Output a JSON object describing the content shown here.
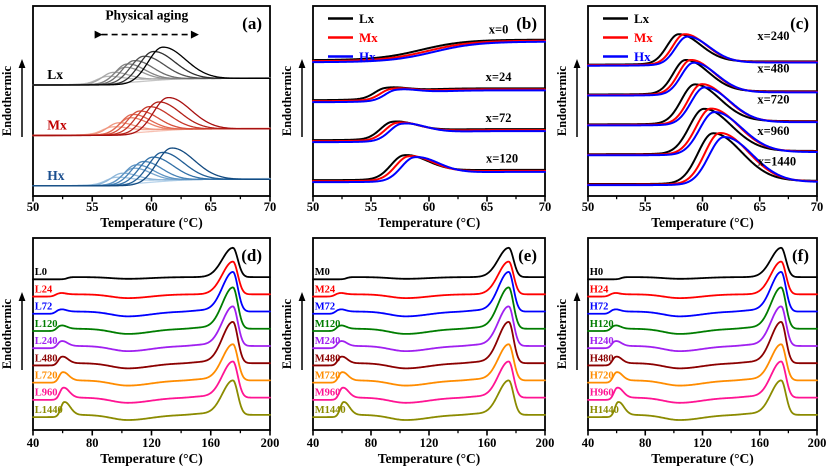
{
  "figure": {
    "background": "#ffffff"
  },
  "chart_data": {
    "type": "line",
    "description_fields": {
      "x_axis_label": "Temperature (°C)",
      "y_axis_label": "Endothermic",
      "aging_times_h": [
        0,
        24,
        72,
        120,
        240,
        480,
        720,
        960,
        1440
      ]
    },
    "bottom_series": {
      "colors": [
        "#000000",
        "#ff0000",
        "#0000ff",
        "#007d00",
        "#a020f0",
        "#8b0000",
        "#ff8c00",
        "#ff1493",
        "#8b8b00"
      ],
      "tg_mu": [
        63.0,
        57.5,
        58.2,
        58.8,
        59.3,
        59.8,
        60.3,
        60.8,
        61.5
      ],
      "tg_amp": [
        0,
        0.12,
        0.18,
        0.25,
        0.35,
        0.45,
        0.55,
        0.65,
        0.82
      ],
      "dip_amp": [
        0.1,
        0.22,
        0.28,
        0.3,
        0.3,
        0.3,
        0.3,
        0.3,
        0.3
      ],
      "melt_amp": [
        1.7,
        1.9,
        2.3,
        2.4,
        2.3,
        2.4,
        2.1,
        2.1,
        2.0
      ],
      "melt_mu": 175
    },
    "panels": [
      {
        "id": "a",
        "letter": "(a)",
        "xlabel": "Temperature (°C)",
        "ylabel": "Endothermic",
        "xlim": [
          50,
          70
        ],
        "xticks": [
          50,
          55,
          60,
          65,
          70
        ],
        "minor": 2.5,
        "ulim": [
          -0.3,
          5.35
        ],
        "lw": 1.3,
        "label_size": 13.5,
        "annotation": {
          "text": "Physical aging",
          "text_x": 59.6,
          "text_y": 4.95,
          "arrow_y": 4.5,
          "arrow_x1": 55.2,
          "arrow_x2": 64.0
        },
        "labels": [
          {
            "text": "Lx",
            "x": 51.2,
            "y": 3.18,
            "color": "#000000",
            "anchor": "start"
          },
          {
            "text": "Mx",
            "x": 51.2,
            "y": 1.68,
            "color": "#c00000",
            "anchor": "start"
          },
          {
            "text": "Hx",
            "x": 51.2,
            "y": 0.18,
            "color": "#1b4f8f",
            "anchor": "start"
          }
        ],
        "families": [
          {
            "name": "Lx",
            "base": 3.0,
            "step0_mu": 59.3,
            "shades": [
              "#c6c6c6",
              "#b7b7b7",
              "#a7a7a7",
              "#959595",
              "#838383",
              "#6c6c6c",
              "#505050",
              "#2f2f2f",
              "#000000"
            ],
            "peaks": [
              null,
              56.2,
              56.7,
              57.7,
              57.9,
              58.5,
              59.3,
              60.1,
              60.9
            ],
            "amps": [
              0,
              0.18,
              0.3,
              0.45,
              0.55,
              0.65,
              0.78,
              0.92,
              1.05
            ],
            "sigmas": [
              0,
              0.8,
              0.85,
              0.9,
              0.95,
              1.0,
              1.1,
              1.15,
              1.2
            ]
          },
          {
            "name": "Mx",
            "base": 1.5,
            "step0_mu": 59.75,
            "shades": [
              "#f7c0b2",
              "#f3ab97",
              "#ef957e",
              "#e97e66",
              "#e16750",
              "#d54e3b",
              "#c63628",
              "#b32018",
              "#a81010"
            ],
            "peaks": [
              null,
              56.65,
              57.15,
              58.15,
              58.35,
              58.95,
              59.75,
              60.55,
              61.35
            ],
            "amps": [
              0,
              0.18,
              0.3,
              0.45,
              0.55,
              0.65,
              0.78,
              0.92,
              1.05
            ],
            "sigmas": [
              0,
              0.8,
              0.85,
              0.9,
              0.95,
              1.0,
              1.1,
              1.15,
              1.2
            ]
          },
          {
            "name": "Hx",
            "base": 0.0,
            "step0_mu": 60.05,
            "shades": [
              "#b9d4eb",
              "#a3c5e2",
              "#8cb5d8",
              "#75a5ce",
              "#5e94c3",
              "#4782b6",
              "#3270a7",
              "#205d95",
              "#124a80"
            ],
            "peaks": [
              null,
              56.95,
              57.45,
              58.45,
              58.65,
              59.25,
              60.05,
              60.85,
              61.65
            ],
            "amps": [
              0,
              0.18,
              0.3,
              0.45,
              0.55,
              0.65,
              0.78,
              0.92,
              1.05
            ],
            "sigmas": [
              0,
              0.8,
              0.85,
              0.9,
              0.95,
              1.0,
              1.1,
              1.15,
              1.2
            ]
          }
        ]
      },
      {
        "id": "b",
        "letter": "(b)",
        "xlabel": "Temperature (°C)",
        "ylabel": "Endothermic",
        "xlim": [
          50,
          70
        ],
        "xticks": [
          50,
          55,
          60,
          65,
          70
        ],
        "minor": 2.5,
        "ulim": [
          -0.35,
          4.45
        ],
        "lw": 2,
        "label_size": 12.5,
        "legend": [
          {
            "label": "Lx",
            "color": "#000000"
          },
          {
            "label": "Mx",
            "color": "#ff0000"
          },
          {
            "label": "Hx",
            "color": "#0000ff"
          }
        ],
        "labels": [
          {
            "text": "x=0",
            "x": 66.0,
            "y": 3.75,
            "color": "#000000",
            "anchor": "middle"
          },
          {
            "text": "x=24",
            "x": 66.0,
            "y": 2.56,
            "color": "#000000",
            "anchor": "middle"
          },
          {
            "text": "x=72",
            "x": 66.0,
            "y": 1.52,
            "color": "#000000",
            "anchor": "middle"
          },
          {
            "text": "x=120",
            "x": 66.3,
            "y": 0.5,
            "color": "#000000",
            "anchor": "middle"
          }
        ],
        "curves": [
          {
            "c": "#000000",
            "b": 3.08,
            "f": [
              [
                "s",
                59.3,
                0.52,
                1.9
              ]
            ]
          },
          {
            "c": "#ff0000",
            "b": 3.055,
            "f": [
              [
                "s",
                59.9,
                0.52,
                1.9
              ]
            ]
          },
          {
            "c": "#0000ff",
            "b": 3.03,
            "f": [
              [
                "s",
                60.4,
                0.52,
                1.9
              ]
            ]
          },
          {
            "c": "#000000",
            "b": 2.07,
            "f": [
              [
                "s",
                57.4,
                0.3,
                1.4
              ],
              [
                "p",
                56.2,
                0.22,
                0.9,
                1.9
              ]
            ]
          },
          {
            "c": "#ff0000",
            "b": 2.045,
            "f": [
              [
                "s",
                57.9,
                0.3,
                1.4
              ],
              [
                "p",
                56.7,
                0.22,
                0.9,
                1.9
              ]
            ]
          },
          {
            "c": "#0000ff",
            "b": 2.02,
            "f": [
              [
                "s",
                58.3,
                0.3,
                1.4
              ],
              [
                "p",
                57.1,
                0.22,
                0.9,
                1.9
              ]
            ]
          },
          {
            "c": "#000000",
            "b": 1.06,
            "f": [
              [
                "s",
                58.0,
                0.28,
                1.4
              ],
              [
                "p",
                56.8,
                0.38,
                1.0,
                1.9
              ]
            ]
          },
          {
            "c": "#ff0000",
            "b": 1.035,
            "f": [
              [
                "s",
                58.4,
                0.28,
                1.4
              ],
              [
                "p",
                57.2,
                0.38,
                1.0,
                1.9
              ]
            ]
          },
          {
            "c": "#0000ff",
            "b": 1.01,
            "f": [
              [
                "s",
                58.8,
                0.28,
                1.4
              ],
              [
                "p",
                57.6,
                0.38,
                1.0,
                1.9
              ]
            ]
          },
          {
            "c": "#000000",
            "b": 0.05,
            "f": [
              [
                "s",
                59.0,
                0.26,
                1.4
              ],
              [
                "p",
                57.8,
                0.55,
                1.1,
                1.8
              ]
            ]
          },
          {
            "c": "#ff0000",
            "b": 0.025,
            "f": [
              [
                "s",
                59.4,
                0.26,
                1.4
              ],
              [
                "p",
                58.2,
                0.55,
                1.1,
                1.8
              ]
            ]
          },
          {
            "c": "#0000ff",
            "b": 0.0,
            "f": [
              [
                "s",
                59.9,
                0.26,
                1.4
              ],
              [
                "p",
                58.7,
                0.55,
                1.1,
                1.8
              ]
            ]
          }
        ]
      },
      {
        "id": "c",
        "letter": "(c)",
        "xlabel": "Temperature (°C)",
        "ylabel": "Endothermic",
        "xlim": [
          50,
          70
        ],
        "xticks": [
          50,
          55,
          60,
          65,
          70
        ],
        "minor": 2.5,
        "ulim": [
          -0.4,
          6.6
        ],
        "lw": 2,
        "label_size": 12.5,
        "legend": [
          {
            "label": "Lx",
            "color": "#000000"
          },
          {
            "label": "Mx",
            "color": "#ff0000"
          },
          {
            "label": "Hx",
            "color": "#0000ff"
          }
        ],
        "labels": [
          {
            "text": "x=240",
            "x": 66.2,
            "y": 5.35,
            "color": "#000000",
            "anchor": "middle"
          },
          {
            "text": "x=480",
            "x": 66.2,
            "y": 4.15,
            "color": "#000000",
            "anchor": "middle"
          },
          {
            "text": "x=720",
            "x": 66.2,
            "y": 3.0,
            "color": "#000000",
            "anchor": "middle"
          },
          {
            "text": "x=960",
            "x": 66.2,
            "y": 1.85,
            "color": "#000000",
            "anchor": "middle"
          },
          {
            "text": "x=1440",
            "x": 66.5,
            "y": 0.72,
            "color": "#000000",
            "anchor": "middle"
          }
        ],
        "curves": [
          {
            "c": "#000000",
            "b": 4.44,
            "f": [
              [
                "s",
                57.4,
                0.12,
                1.5
              ],
              [
                "p",
                57.9,
                1.05,
                1.0,
                1.9
              ]
            ]
          },
          {
            "c": "#ff0000",
            "b": 4.42,
            "f": [
              [
                "s",
                57.9,
                0.12,
                1.5
              ],
              [
                "p",
                58.4,
                1.07,
                1.0,
                1.9
              ]
            ]
          },
          {
            "c": "#0000ff",
            "b": 4.4,
            "f": [
              [
                "s",
                58.1,
                0.12,
                1.5
              ],
              [
                "p",
                58.65,
                1.0,
                1.0,
                1.9
              ]
            ]
          },
          {
            "c": "#000000",
            "b": 3.34,
            "f": [
              [
                "s",
                58.0,
                0.12,
                1.5
              ],
              [
                "p",
                58.5,
                1.2,
                1.05,
                1.9
              ]
            ]
          },
          {
            "c": "#ff0000",
            "b": 3.32,
            "f": [
              [
                "s",
                58.4,
                0.12,
                1.5
              ],
              [
                "p",
                58.95,
                1.22,
                1.05,
                1.9
              ]
            ]
          },
          {
            "c": "#0000ff",
            "b": 3.3,
            "f": [
              [
                "s",
                58.7,
                0.12,
                1.5
              ],
              [
                "p",
                59.2,
                1.14,
                1.05,
                1.9
              ]
            ]
          },
          {
            "c": "#000000",
            "b": 2.24,
            "f": [
              [
                "s",
                58.8,
                0.12,
                1.5
              ],
              [
                "p",
                59.3,
                1.4,
                1.15,
                1.9
              ]
            ]
          },
          {
            "c": "#ff0000",
            "b": 2.22,
            "f": [
              [
                "s",
                59.4,
                0.12,
                1.5
              ],
              [
                "p",
                59.9,
                1.43,
                1.15,
                1.9
              ]
            ]
          },
          {
            "c": "#0000ff",
            "b": 2.2,
            "f": [
              [
                "s",
                59.6,
                0.12,
                1.5
              ],
              [
                "p",
                60.15,
                1.33,
                1.15,
                1.9
              ]
            ]
          },
          {
            "c": "#000000",
            "b": 1.14,
            "f": [
              [
                "s",
                59.6,
                0.12,
                1.5
              ],
              [
                "p",
                60.1,
                1.6,
                1.25,
                1.9
              ]
            ]
          },
          {
            "c": "#ff0000",
            "b": 1.12,
            "f": [
              [
                "s",
                60.2,
                0.12,
                1.5
              ],
              [
                "p",
                60.7,
                1.63,
                1.25,
                1.9
              ]
            ]
          },
          {
            "c": "#0000ff",
            "b": 1.1,
            "f": [
              [
                "s",
                60.5,
                0.12,
                1.5
              ],
              [
                "p",
                61.0,
                1.52,
                1.25,
                1.9
              ]
            ]
          },
          {
            "c": "#000000",
            "b": 0.04,
            "f": [
              [
                "s",
                60.4,
                0.12,
                1.5
              ],
              [
                "p",
                60.9,
                1.8,
                1.3,
                1.9
              ]
            ]
          },
          {
            "c": "#ff0000",
            "b": 0.02,
            "f": [
              [
                "s",
                61.0,
                0.12,
                1.5
              ],
              [
                "p",
                61.5,
                1.83,
                1.3,
                1.9
              ]
            ]
          },
          {
            "c": "#0000ff",
            "b": 0.0,
            "f": [
              [
                "s",
                61.3,
                0.12,
                1.5
              ],
              [
                "p",
                61.85,
                1.7,
                1.3,
                1.9
              ]
            ]
          }
        ]
      },
      {
        "id": "d",
        "letter": "(d)",
        "xlabel": "Temperature (°C)",
        "ylabel": "Endothermic",
        "xlim": [
          40,
          200
        ],
        "xticks": [
          40,
          80,
          120,
          160,
          200
        ],
        "minor": 20,
        "ulim": [
          -0.75,
          10.4
        ],
        "lw": 1.8,
        "label_size": 10.5,
        "bottom": true,
        "series_labels": [
          "L0",
          "L24",
          "L72",
          "L120",
          "L240",
          "L480",
          "L720",
          "L960",
          "L1440"
        ]
      },
      {
        "id": "e",
        "letter": "(e)",
        "xlabel": "Temperature (°C)",
        "ylabel": "Endothermic",
        "xlim": [
          40,
          200
        ],
        "xticks": [
          40,
          80,
          120,
          160,
          200
        ],
        "minor": 20,
        "ulim": [
          -0.75,
          10.4
        ],
        "lw": 1.8,
        "label_size": 10.5,
        "bottom": true,
        "series_labels": [
          "M0",
          "M24",
          "M72",
          "M120",
          "M240",
          "M480",
          "M720",
          "M960",
          "M1440"
        ]
      },
      {
        "id": "f",
        "letter": "(f)",
        "xlabel": "Temperature (°C)",
        "ylabel": "Endothermic",
        "xlim": [
          40,
          200
        ],
        "xticks": [
          40,
          80,
          120,
          160,
          200
        ],
        "minor": 20,
        "ulim": [
          -0.75,
          10.4
        ],
        "lw": 1.8,
        "label_size": 10.5,
        "bottom": true,
        "series_labels": [
          "H0",
          "H24",
          "H72",
          "H120",
          "H240",
          "H480",
          "H720",
          "H960",
          "H1440"
        ]
      }
    ]
  }
}
